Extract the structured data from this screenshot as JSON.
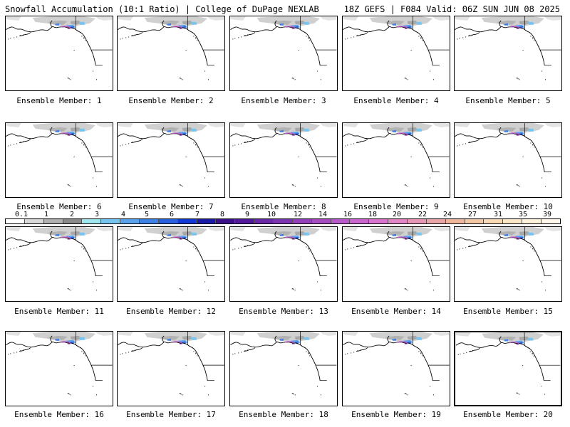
{
  "header": {
    "title_left": "Snowfall Accumulation (10:1 Ratio) | College of DuPage NEXLAB",
    "title_right": "18Z GEFS | F084 Valid: 06Z SUN JUN 08 2025"
  },
  "colorbar": {
    "labels": [
      "0.1",
      "1",
      "2",
      "3",
      "4",
      "5",
      "6",
      "7",
      "8",
      "9",
      "10",
      "12",
      "14",
      "16",
      "18",
      "20",
      "22",
      "24",
      "27",
      "31",
      "35",
      "39"
    ],
    "colors": [
      "#ffffff",
      "#d9d9d9",
      "#b0b0b0",
      "#8a8a8a",
      "#9fe6ef",
      "#75c5f0",
      "#5aa2ec",
      "#3f82e6",
      "#2a5fe0",
      "#1238d6",
      "#1a1aa8",
      "#3b0e8a",
      "#511a9c",
      "#6a2aa8",
      "#7e35b2",
      "#9241ba",
      "#a64dc2",
      "#b95acb",
      "#c967cf",
      "#d975cf",
      "#e187c5",
      "#e597b6",
      "#e9a6a8",
      "#eeb79c",
      "#f3c8a5",
      "#f8d9b5",
      "#fbe8c8",
      "#fdf3dc",
      "#fff8ea"
    ]
  },
  "panels": [
    {
      "caption": "Ensemble Member: 1"
    },
    {
      "caption": "Ensemble Member: 2"
    },
    {
      "caption": "Ensemble Member: 3"
    },
    {
      "caption": "Ensemble Member: 4"
    },
    {
      "caption": "Ensemble Member: 5"
    },
    {
      "caption": "Ensemble Member: 6"
    },
    {
      "caption": "Ensemble Member: 7"
    },
    {
      "caption": "Ensemble Member: 8"
    },
    {
      "caption": "Ensemble Member: 9"
    },
    {
      "caption": "Ensemble Member: 10"
    },
    {
      "caption": "Ensemble Member: 11"
    },
    {
      "caption": "Ensemble Member: 12"
    },
    {
      "caption": "Ensemble Member: 13"
    },
    {
      "caption": "Ensemble Member: 14"
    },
    {
      "caption": "Ensemble Member: 15"
    },
    {
      "caption": "Ensemble Member: 16"
    },
    {
      "caption": "Ensemble Member: 17"
    },
    {
      "caption": "Ensemble Member: 18"
    },
    {
      "caption": "Ensemble Member: 19"
    },
    {
      "caption": "Ensemble Member: 20"
    }
  ],
  "selected_member": 20
}
